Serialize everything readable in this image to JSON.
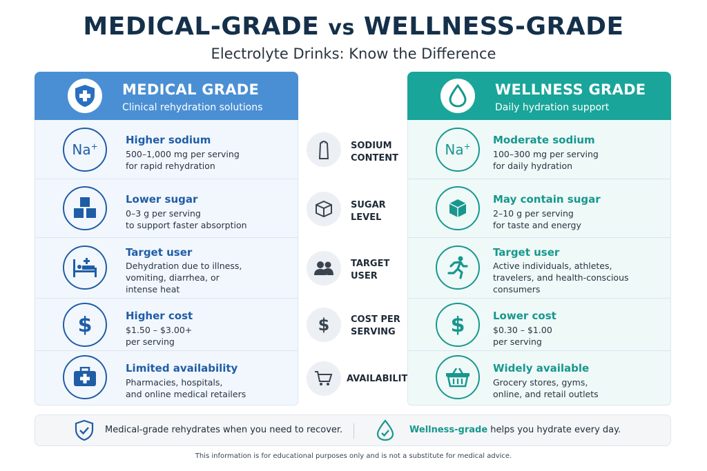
{
  "header": {
    "title_left": "MEDICAL-GRADE",
    "title_vs": "vs",
    "title_right": "WELLNESS-GRADE",
    "subtitle": "Electrolyte Drinks: Know the Difference"
  },
  "medical": {
    "title": "MEDICAL GRADE",
    "subtitle": "Clinical rehydration solutions",
    "icon": "shield-cross-icon",
    "color": "#4a8fd4",
    "rows": [
      {
        "icon": "sodium-na-icon",
        "title": "Higher sodium",
        "desc": "500–1,000 mg per serving\nfor rapid rehydration"
      },
      {
        "icon": "sugar-cubes-icon",
        "title": "Lower sugar",
        "desc": "0–3 g per serving\nto support faster absorption"
      },
      {
        "icon": "hospital-bed-icon",
        "title": "Target user",
        "desc": "Dehydration due to illness,\nvomiting, diarrhea, or\nintense heat"
      },
      {
        "icon": "dollar-icon",
        "title": "Higher cost",
        "desc": "$1.50 – $3.00+\nper serving"
      },
      {
        "icon": "medical-kit-icon",
        "title": "Limited availability",
        "desc": "Pharmacies, hospitals,\nand online medical retailers"
      }
    ]
  },
  "categories": [
    {
      "icon": "salt-shaker-icon",
      "label": "SODIUM\nCONTENT"
    },
    {
      "icon": "sugar-cube-icon",
      "label": "SUGAR\nLEVEL"
    },
    {
      "icon": "users-icon",
      "label": "TARGET\nUSER"
    },
    {
      "icon": "dollar-icon",
      "label": "COST PER\nSERVING"
    },
    {
      "icon": "cart-icon",
      "label": "AVAILABILITY"
    }
  ],
  "wellness": {
    "title": "WELLNESS GRADE",
    "subtitle": "Daily hydration support",
    "icon": "water-drop-icon",
    "color": "#19a59a",
    "rows": [
      {
        "icon": "sodium-na-icon",
        "title": "Moderate sodium",
        "desc": "100–300 mg per serving\nfor daily hydration"
      },
      {
        "icon": "sugar-cube-icon",
        "title": "May contain sugar",
        "desc": "2–10 g per serving\nfor taste and energy"
      },
      {
        "icon": "runner-icon",
        "title": "Target user",
        "desc": "Active individuals, athletes,\ntravelers, and health-conscious\nconsumers"
      },
      {
        "icon": "dollar-icon",
        "title": "Lower cost",
        "desc": "$0.30 – $1.00\nper serving"
      },
      {
        "icon": "basket-icon",
        "title": "Widely available",
        "desc": "Grocery stores, gyms,\nonline, and retail outlets"
      }
    ]
  },
  "footer": {
    "left_text": "Medical-grade rehydrates when you need to recover.",
    "right_highlight": "Wellness-grade",
    "right_text": " helps you hydrate every day.",
    "disclaimer": "This information is for educational purposes only and is not a substitute for medical advice."
  }
}
